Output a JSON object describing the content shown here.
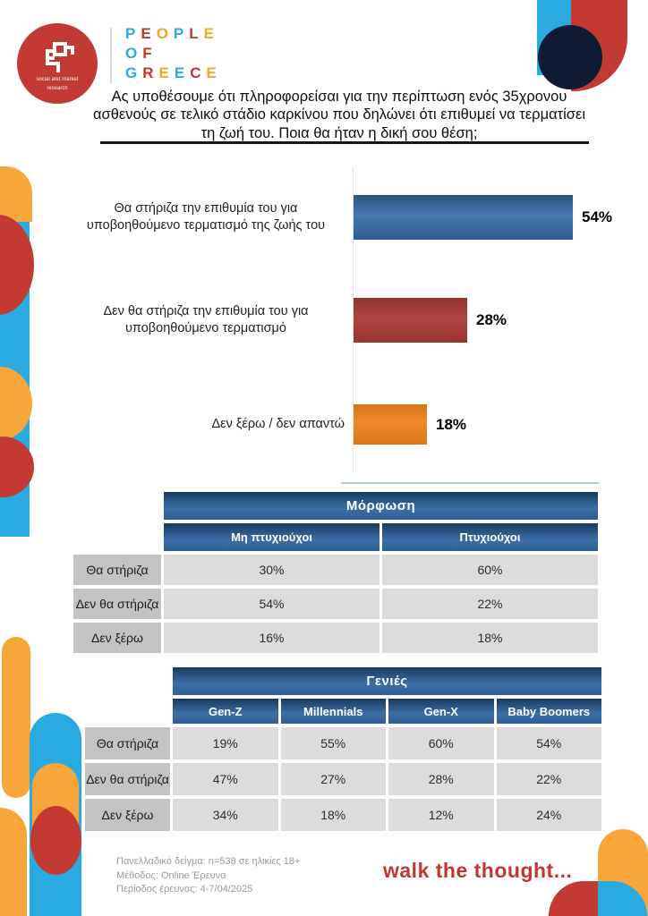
{
  "colors": {
    "cyan": "#29abe2",
    "orange": "#f6a63a",
    "red": "#c23a31",
    "navy": "#101b33",
    "gray-label": "#c3c3c3",
    "gray-cell": "#dcdcdc"
  },
  "brand": {
    "logo_line1": "social and market",
    "logo_line2": "research",
    "title_lines": [
      "PEOPLE",
      "OF",
      "GREECE"
    ],
    "letter_palette": [
      "#29abe2",
      "#c0392b",
      "#f5a623"
    ]
  },
  "question": {
    "text": "Ας υποθέσουμε ότι πληροφορείσαι για την περίπτωση ενός 35χρονου ασθενούς σε τελικό στάδιο καρκίνου που δηλώνει ότι επιθυμεί να τερματίσει τη ζωή του. Ποια θα ήταν η δική σου θέση;"
  },
  "chart_data": {
    "type": "bar",
    "orientation": "horizontal",
    "categories": [
      "Θα στήριζα την επιθυμία του για υποβοηθούμενο τερματισμό της ζωής του",
      "Δεν θα στήριζα την επιθυμία του για υποβοηθούμενο τερματισμό",
      "Δεν ξέρω / δεν απαντώ"
    ],
    "values": [
      54,
      28,
      18
    ],
    "value_labels": [
      "54%",
      "28%",
      "18%"
    ],
    "colors": [
      "#30619a",
      "#a63b35",
      "#e8811d"
    ],
    "xlim": [
      0,
      60
    ],
    "grid": false,
    "legend": false
  },
  "tables": [
    {
      "title": "Μόρφωση",
      "columns": [
        "Μη πτυχιούχοι",
        "Πτυχιούχοι"
      ],
      "rows": [
        {
          "label": "Θα στήριζα",
          "values": [
            "30%",
            "60%"
          ]
        },
        {
          "label": "Δεν θα στήριζα",
          "values": [
            "54%",
            "22%"
          ]
        },
        {
          "label": "Δεν ξέρω",
          "values": [
            "16%",
            "18%"
          ]
        }
      ]
    },
    {
      "title": "Γενιές",
      "columns": [
        "Gen-Z",
        "Millennials",
        "Gen-X",
        "Baby Boomers"
      ],
      "rows": [
        {
          "label": "Θα στήριζα",
          "values": [
            "19%",
            "55%",
            "60%",
            "54%"
          ]
        },
        {
          "label": "Δεν θα στήριζα",
          "values": [
            "47%",
            "27%",
            "28%",
            "22%"
          ]
        },
        {
          "label": "Δεν ξέρω",
          "values": [
            "34%",
            "18%",
            "12%",
            "24%"
          ]
        }
      ]
    }
  ],
  "footer": {
    "lines": [
      "Πανελλαδικό δείγμα: n=538 σε ηλικίες 18+",
      "Μέθοδος: Online Έρευνα",
      "Περίοδος έρευνας: 4-7/04/2025"
    ],
    "slogan": "walk the thought...",
    "slogan_color": "#c2362f"
  }
}
